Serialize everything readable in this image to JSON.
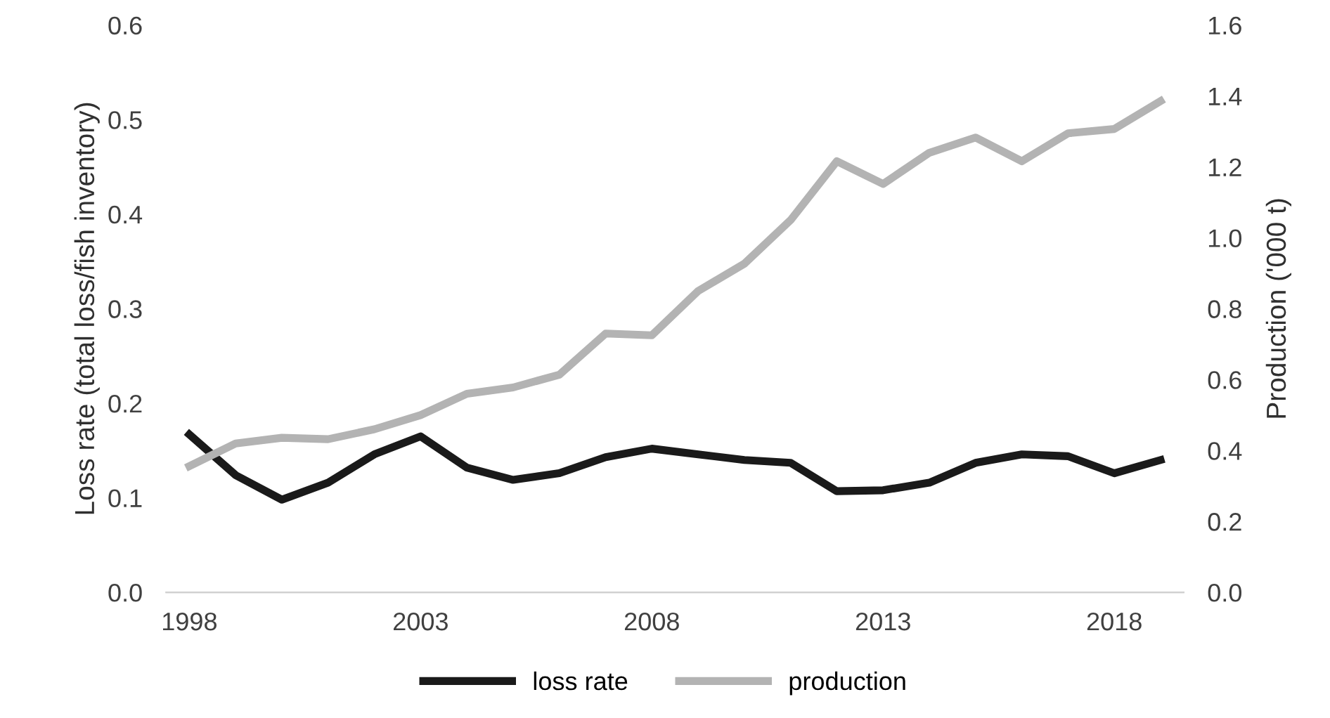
{
  "chart_data": {
    "type": "line",
    "x": [
      1998,
      1999,
      2000,
      2001,
      2002,
      2003,
      2004,
      2005,
      2006,
      2007,
      2008,
      2009,
      2010,
      2011,
      2012,
      2013,
      2014,
      2015,
      2016,
      2017,
      2018,
      2019
    ],
    "xlim": [
      1997.5,
      2019.5
    ],
    "xticks": [
      1998,
      2003,
      2008,
      2013,
      2018
    ],
    "ylabel": "Loss rate (total loss/fish inventory)",
    "y2label": "Production ('000 t)",
    "ylim": [
      0,
      0.6
    ],
    "yticks": [
      {
        "value": 0,
        "label": "0.0"
      },
      0.1,
      0.2,
      0.3,
      0.4,
      0.5,
      0.6
    ],
    "y2lim": [
      0,
      1.6
    ],
    "y2ticks": [
      {
        "value": 0,
        "label": "0.0"
      },
      0.2,
      0.4,
      0.6,
      0.8,
      {
        "value": 1,
        "label": "1.0"
      },
      1.2,
      1.4,
      1.6
    ],
    "legend": "bottom",
    "grid": false,
    "marker": "none",
    "line_style": "solid",
    "series": [
      {
        "name": "loss rate",
        "color": "#1a1a1a",
        "values": [
          0.167,
          0.124,
          0.098,
          0.116,
          0.146,
          0.165,
          0.132,
          0.119,
          0.126,
          0.143,
          0.152,
          0.146,
          0.14,
          0.137,
          0.107,
          0.108,
          0.116,
          0.137,
          0.146,
          0.144,
          0.126,
          0.14
        ]
      },
      {
        "name": "production",
        "color": "#b3b3b3",
        "axis": "y2",
        "values": [
          0.356,
          0.42,
          0.436,
          0.432,
          0.46,
          0.5,
          0.56,
          0.578,
          0.614,
          0.73,
          0.725,
          0.85,
          0.927,
          1.05,
          1.216,
          1.152,
          1.24,
          1.283,
          1.216,
          1.295,
          1.307,
          1.386
        ]
      }
    ]
  }
}
